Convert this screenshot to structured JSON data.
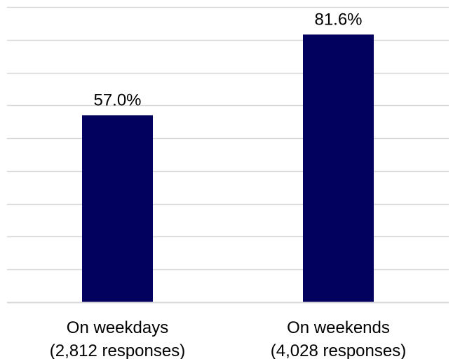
{
  "chart_data": {
    "type": "bar",
    "categories": [
      [
        "On weekdays",
        "(2,812 responses)"
      ],
      [
        "On weekends",
        "(4,028 responses)"
      ]
    ],
    "values": [
      57.0,
      81.6
    ],
    "data_labels": [
      "57.0%",
      "81.6%"
    ],
    "ylim": [
      0,
      90
    ],
    "grid": true,
    "legend": "none",
    "bar_color": "#03015E",
    "grid_color": "#D9D9D9",
    "axis_color": "#D9D9D9"
  }
}
